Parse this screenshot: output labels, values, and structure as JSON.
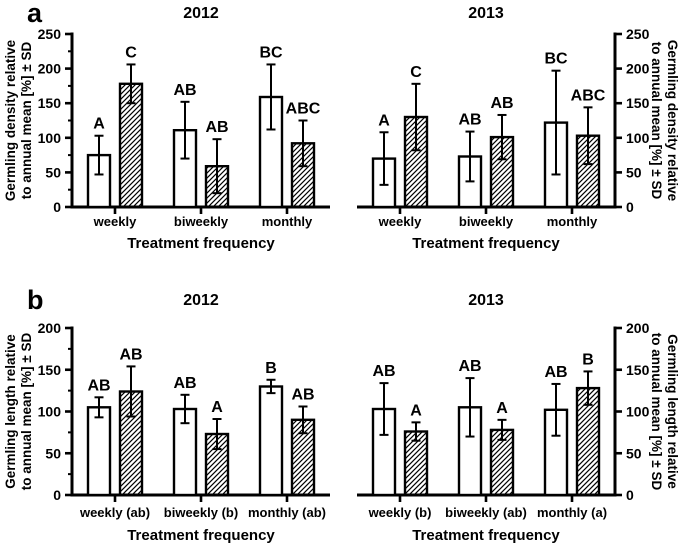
{
  "figure": {
    "row_labels": [
      "a",
      "b"
    ],
    "colors": {
      "foreground": "#000000",
      "background": "#ffffff"
    }
  },
  "chart_data": [
    {
      "type": "bar",
      "panel": "a",
      "title": "2012",
      "axis_side": "left",
      "ylabel_lines": [
        "Germling density relative",
        "to annual mean [%] ± SD"
      ],
      "xlabel": "Treatment frequency",
      "ylim": [
        0,
        250
      ],
      "yticks": [
        0,
        50,
        100,
        150,
        200,
        250
      ],
      "minor_tick_step": 25,
      "categories": [
        "weekly",
        "biweekly",
        "monthly"
      ],
      "series": [
        {
          "name": "open-bar",
          "style": "open",
          "values": [
            75,
            111,
            159
          ],
          "sd": [
            28,
            41,
            47
          ],
          "sig_letters": [
            "A",
            "AB",
            "BC"
          ]
        },
        {
          "name": "hatched-bar",
          "style": "hatched",
          "values": [
            178,
            59,
            92
          ],
          "sd": [
            28,
            39,
            33
          ],
          "sig_letters": [
            "C",
            "AB",
            "ABC"
          ]
        }
      ]
    },
    {
      "type": "bar",
      "panel": "a",
      "title": "2013",
      "axis_side": "right",
      "ylabel_lines": [
        "Germling density relative",
        "to annual mean [%] ± SD"
      ],
      "xlabel": "Treatment frequency",
      "ylim": [
        0,
        250
      ],
      "yticks": [
        0,
        50,
        100,
        150,
        200,
        250
      ],
      "minor_tick_step": 25,
      "categories": [
        "weekly",
        "biweekly",
        "monthly"
      ],
      "series": [
        {
          "name": "open-bar",
          "style": "open",
          "values": [
            70,
            73,
            122
          ],
          "sd": [
            38,
            36,
            75
          ],
          "sig_letters": [
            "A",
            "AB",
            "BC"
          ]
        },
        {
          "name": "hatched-bar",
          "style": "hatched",
          "values": [
            130,
            101,
            103
          ],
          "sd": [
            48,
            32,
            41
          ],
          "sig_letters": [
            "C",
            "AB",
            "ABC"
          ]
        }
      ]
    },
    {
      "type": "bar",
      "panel": "b",
      "title": "2012",
      "axis_side": "left",
      "ylabel_lines": [
        "Germling length relative",
        "to annual mean [%] ± SD"
      ],
      "xlabel": "Treatment frequency",
      "ylim": [
        0,
        200
      ],
      "yticks": [
        0,
        50,
        100,
        150,
        200
      ],
      "minor_tick_step": 25,
      "categories": [
        "weekly (ab)",
        "biweekly (b)",
        "monthly (ab)"
      ],
      "series": [
        {
          "name": "open-bar",
          "style": "open",
          "values": [
            105,
            103,
            130
          ],
          "sd": [
            12,
            17,
            8
          ],
          "sig_letters": [
            "AB",
            "AB",
            "B"
          ]
        },
        {
          "name": "hatched-bar",
          "style": "hatched",
          "values": [
            124,
            73,
            90
          ],
          "sd": [
            30,
            18,
            16
          ],
          "sig_letters": [
            "AB",
            "A",
            "AB"
          ]
        }
      ]
    },
    {
      "type": "bar",
      "panel": "b",
      "title": "2013",
      "axis_side": "right",
      "ylabel_lines": [
        "Germling length relative",
        "to annual mean [%] ± SD"
      ],
      "xlabel": "Treatment frequency",
      "ylim": [
        0,
        200
      ],
      "yticks": [
        0,
        50,
        100,
        150,
        200
      ],
      "minor_tick_step": 25,
      "categories": [
        "weekly (b)",
        "biweekly (ab)",
        "monthly (a)"
      ],
      "series": [
        {
          "name": "open-bar",
          "style": "open",
          "values": [
            103,
            105,
            102
          ],
          "sd": [
            31,
            35,
            31
          ],
          "sig_letters": [
            "AB",
            "AB",
            "AB"
          ]
        },
        {
          "name": "hatched-bar",
          "style": "hatched",
          "values": [
            76,
            78,
            128
          ],
          "sd": [
            11,
            12,
            20
          ],
          "sig_letters": [
            "A",
            "A",
            "B"
          ]
        }
      ]
    }
  ]
}
